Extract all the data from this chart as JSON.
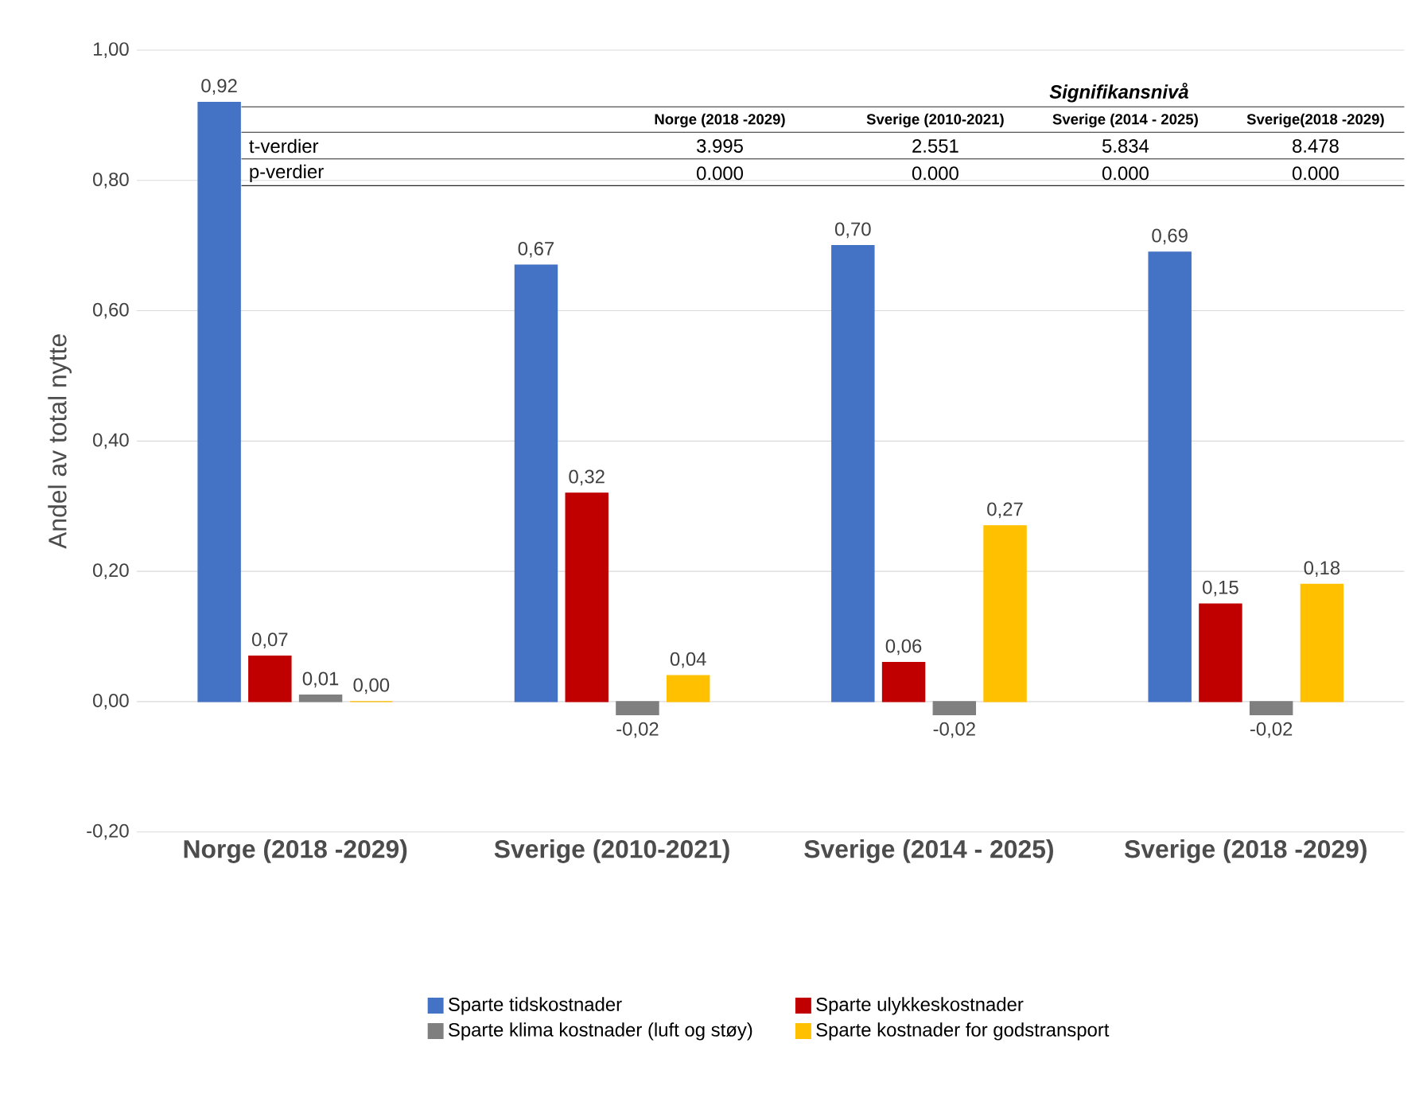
{
  "chart_data": {
    "type": "bar",
    "ylabel": "Andel av total nytte",
    "categories": [
      "Norge (2018 -2029)",
      "Sverige (2010-2021)",
      "Sverige (2014 - 2025)",
      "Sverige (2018 -2029)"
    ],
    "series": [
      {
        "name": "Sparte tidskostnader",
        "color": "#4472c4",
        "values": [
          0.92,
          0.67,
          0.7,
          0.69
        ],
        "value_labels": [
          "0,92",
          "0,67",
          "0,70",
          "0,69"
        ]
      },
      {
        "name": "Sparte ulykkeskostnader",
        "color": "#c00000",
        "values": [
          0.07,
          0.32,
          0.06,
          0.15
        ],
        "value_labels": [
          "0,07",
          "0,32",
          "0,06",
          "0,15"
        ]
      },
      {
        "name": "Sparte klima kostnader (luft og støy)",
        "color": "#7f7f7f",
        "values": [
          0.01,
          -0.02,
          -0.02,
          -0.02
        ],
        "value_labels": [
          "0,01",
          "-0,02",
          "-0,02",
          "-0,02"
        ]
      },
      {
        "name": "Sparte kostnader for godstransport",
        "color": "#ffc000",
        "values": [
          0.0,
          0.04,
          0.27,
          0.18
        ],
        "value_labels": [
          "0,00",
          "0,04",
          "0,27",
          "0,18"
        ]
      }
    ],
    "ylim": [
      -0.2,
      1.0
    ],
    "yticks": [
      {
        "value": -0.2,
        "label": "-0,20"
      },
      {
        "value": 0,
        "label": "0,00"
      },
      {
        "value": 0.2,
        "label": "0,20"
      },
      {
        "value": 0.4,
        "label": "0,40"
      },
      {
        "value": 0.6,
        "label": "0,60"
      },
      {
        "value": 0.8,
        "label": "0,80"
      },
      {
        "value": 1.0,
        "label": "1,00"
      }
    ],
    "grid": "y",
    "legend": "bottom",
    "annotations": [
      "Signifikansnivå",
      "Norge (2018 -2029)",
      "Sverige (2010-2021)",
      "Sverige (2014 - 2025)",
      "Sverige(2018 -2029)",
      "t-verdier",
      "3.995",
      "2.551",
      "5.834",
      "8.478",
      "p-verdier",
      "0.000",
      "0.000",
      "0.000",
      "0.000"
    ]
  }
}
